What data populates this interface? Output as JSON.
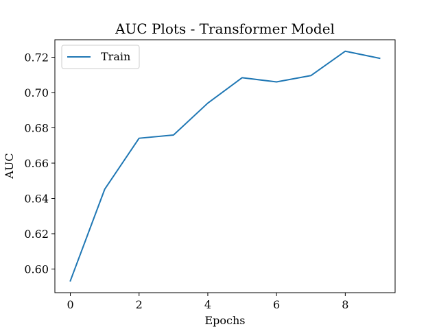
{
  "chart_data": {
    "type": "line",
    "title": "AUC Plots - Transformer Model",
    "xlabel": "Epochs",
    "ylabel": "AUC",
    "x": [
      0,
      1,
      2,
      3,
      4,
      5,
      6,
      7,
      8,
      9
    ],
    "series": [
      {
        "name": "Train",
        "color": "#1f77b4",
        "values": [
          0.5933,
          0.6452,
          0.6741,
          0.6759,
          0.694,
          0.7084,
          0.706,
          0.7096,
          0.7234,
          0.7194
        ]
      }
    ],
    "xlim": [
      -0.45,
      9.45
    ],
    "ylim": [
      0.5866,
      0.7299
    ],
    "xticks": [
      0,
      2,
      4,
      6,
      8
    ],
    "xtick_labels": [
      "0",
      "2",
      "4",
      "6",
      "8"
    ],
    "yticks": [
      0.6,
      0.62,
      0.64,
      0.66,
      0.68,
      0.7,
      0.72
    ],
    "ytick_labels": [
      "0.60",
      "0.62",
      "0.64",
      "0.66",
      "0.68",
      "0.70",
      "0.72"
    ],
    "grid": false,
    "legend_position": "top-left"
  }
}
